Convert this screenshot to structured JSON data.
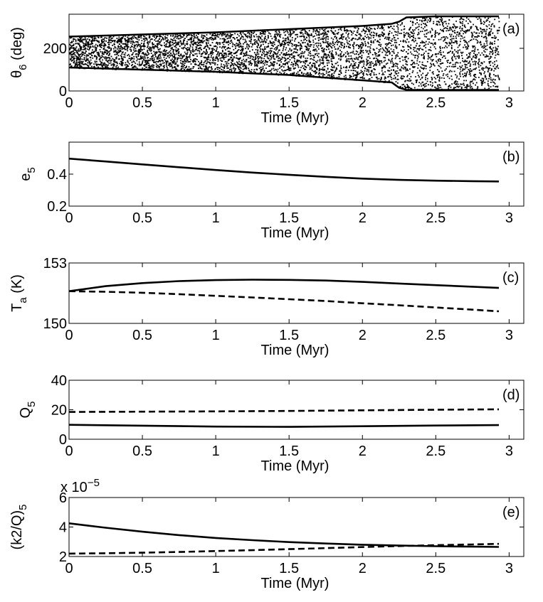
{
  "colors": {
    "ink": "#000000",
    "background": "#ffffff"
  },
  "chart_data": [
    {
      "panel": "a",
      "type": "scatter",
      "tag": "(a)",
      "xlabel": "Time (Myr)",
      "ylabel_main": "θ",
      "ylabel_sub": "6",
      "ylabel_tail": " (deg)",
      "xlim": [
        0,
        3.1
      ],
      "ylim": [
        0,
        360
      ],
      "xticks": [
        0,
        0.5,
        1,
        1.5,
        2,
        2.5,
        3
      ],
      "xtick_labels": [
        "0",
        "0.5",
        "1",
        "1.5",
        "2",
        "2.5",
        "3"
      ],
      "yticks": [
        0,
        200
      ],
      "ytick_labels": [
        "0",
        "200"
      ],
      "exponent_label": "",
      "exponent_sup": "",
      "band_envelope": {
        "x": [
          0,
          0.5,
          1.0,
          1.5,
          2.0,
          2.2,
          2.25,
          2.3,
          2.5,
          2.75,
          2.93
        ],
        "lower": [
          110,
          100,
          90,
          75,
          50,
          40,
          15,
          5,
          5,
          5,
          5
        ],
        "upper": [
          255,
          265,
          275,
          290,
          305,
          315,
          325,
          345,
          350,
          350,
          350
        ]
      },
      "series": []
    },
    {
      "panel": "b",
      "type": "line",
      "tag": "(b)",
      "xlabel": "Time (Myr)",
      "ylabel_main": "e",
      "ylabel_sub": "5",
      "ylabel_tail": "",
      "xlim": [
        0,
        3.1
      ],
      "ylim": [
        0.2,
        0.6
      ],
      "xticks": [
        0,
        0.5,
        1,
        1.5,
        2,
        2.5,
        3
      ],
      "xtick_labels": [
        "0",
        "0.5",
        "1",
        "1.5",
        "2",
        "2.5",
        "3"
      ],
      "yticks": [
        0.2,
        0.4
      ],
      "ytick_labels": [
        "0.2",
        "0.4"
      ],
      "exponent_label": "",
      "exponent_sup": "",
      "series": [
        {
          "name": "e5",
          "style": "solid",
          "x": [
            0,
            0.25,
            0.5,
            0.75,
            1.0,
            1.25,
            1.5,
            1.75,
            2.0,
            2.25,
            2.5,
            2.75,
            2.93
          ],
          "y": [
            0.497,
            0.479,
            0.461,
            0.443,
            0.426,
            0.41,
            0.396,
            0.383,
            0.372,
            0.364,
            0.359,
            0.356,
            0.354
          ]
        }
      ]
    },
    {
      "panel": "c",
      "type": "line",
      "tag": "(c)",
      "xlabel": "Time (Myr)",
      "ylabel_main": "T",
      "ylabel_sub": "a",
      "ylabel_tail": " (K)",
      "xlim": [
        0,
        3.1
      ],
      "ylim": [
        150,
        153
      ],
      "xticks": [
        0,
        0.5,
        1,
        1.5,
        2,
        2.5,
        3
      ],
      "xtick_labels": [
        "0",
        "0.5",
        "1",
        "1.5",
        "2",
        "2.5",
        "3"
      ],
      "yticks": [
        150,
        153
      ],
      "ytick_labels": [
        "150",
        "153"
      ],
      "exponent_label": "",
      "exponent_sup": "",
      "series": [
        {
          "name": "solid",
          "style": "solid",
          "x": [
            0,
            0.25,
            0.5,
            0.75,
            1.0,
            1.25,
            1.5,
            1.75,
            2.0,
            2.25,
            2.5,
            2.75,
            2.93
          ],
          "y": [
            151.6,
            151.85,
            152.0,
            152.1,
            152.15,
            152.17,
            152.16,
            152.13,
            152.06,
            151.98,
            151.9,
            151.82,
            151.76
          ]
        },
        {
          "name": "dashed",
          "style": "dashed",
          "x": [
            0,
            0.25,
            0.5,
            0.75,
            1.0,
            1.25,
            1.5,
            1.75,
            2.0,
            2.25,
            2.5,
            2.75,
            2.93
          ],
          "y": [
            151.6,
            151.57,
            151.52,
            151.45,
            151.37,
            151.29,
            151.2,
            151.11,
            151.0,
            150.9,
            150.79,
            150.68,
            150.6
          ]
        }
      ]
    },
    {
      "panel": "d",
      "type": "line",
      "tag": "(d)",
      "xlabel": "Time (Myr)",
      "ylabel_main": "Q",
      "ylabel_sub": "5",
      "ylabel_tail": "",
      "xlim": [
        0,
        3.1
      ],
      "ylim": [
        0,
        40
      ],
      "xticks": [
        0,
        0.5,
        1,
        1.5,
        2,
        2.5,
        3
      ],
      "xtick_labels": [
        "0",
        "0.5",
        "1",
        "1.5",
        "2",
        "2.5",
        "3"
      ],
      "yticks": [
        0,
        20,
        40
      ],
      "ytick_labels": [
        "0",
        "20",
        "40"
      ],
      "exponent_label": "",
      "exponent_sup": "",
      "series": [
        {
          "name": "solid",
          "style": "solid",
          "x": [
            0,
            0.5,
            1.0,
            1.5,
            2.0,
            2.5,
            2.93
          ],
          "y": [
            9.8,
            9.2,
            8.6,
            8.4,
            8.8,
            9.3,
            9.6
          ]
        },
        {
          "name": "dashed",
          "style": "dashed",
          "x": [
            0,
            0.5,
            1.0,
            1.5,
            2.0,
            2.5,
            2.93
          ],
          "y": [
            18.5,
            18.7,
            18.9,
            19.2,
            19.6,
            20.0,
            20.3
          ]
        }
      ]
    },
    {
      "panel": "e",
      "type": "line",
      "tag": "(e)",
      "xlabel": "Time (Myr)",
      "ylabel_main": "(k2/Q)",
      "ylabel_sub": "5",
      "ylabel_tail": "",
      "xlim": [
        0,
        3.1
      ],
      "ylim": [
        2,
        6
      ],
      "xticks": [
        0,
        0.5,
        1,
        1.5,
        2,
        2.5,
        3
      ],
      "xtick_labels": [
        "0",
        "0.5",
        "1",
        "1.5",
        "2",
        "2.5",
        "3"
      ],
      "yticks": [
        2,
        4,
        6
      ],
      "ytick_labels": [
        "2",
        "4",
        "6"
      ],
      "exponent_label": "x 10",
      "exponent_sup": "−5",
      "series": [
        {
          "name": "solid",
          "style": "solid",
          "x": [
            0,
            0.25,
            0.5,
            0.75,
            1.0,
            1.25,
            1.5,
            1.75,
            2.0,
            2.25,
            2.5,
            2.75,
            2.93
          ],
          "y": [
            4.25,
            3.95,
            3.68,
            3.45,
            3.26,
            3.11,
            2.98,
            2.88,
            2.8,
            2.74,
            2.7,
            2.67,
            2.65
          ]
        },
        {
          "name": "dashed",
          "style": "dashed",
          "x": [
            0,
            0.25,
            0.5,
            0.75,
            1.0,
            1.25,
            1.5,
            1.75,
            2.0,
            2.25,
            2.5,
            2.75,
            2.93
          ],
          "y": [
            2.2,
            2.22,
            2.26,
            2.31,
            2.37,
            2.43,
            2.5,
            2.57,
            2.64,
            2.71,
            2.77,
            2.82,
            2.86
          ]
        }
      ]
    }
  ]
}
